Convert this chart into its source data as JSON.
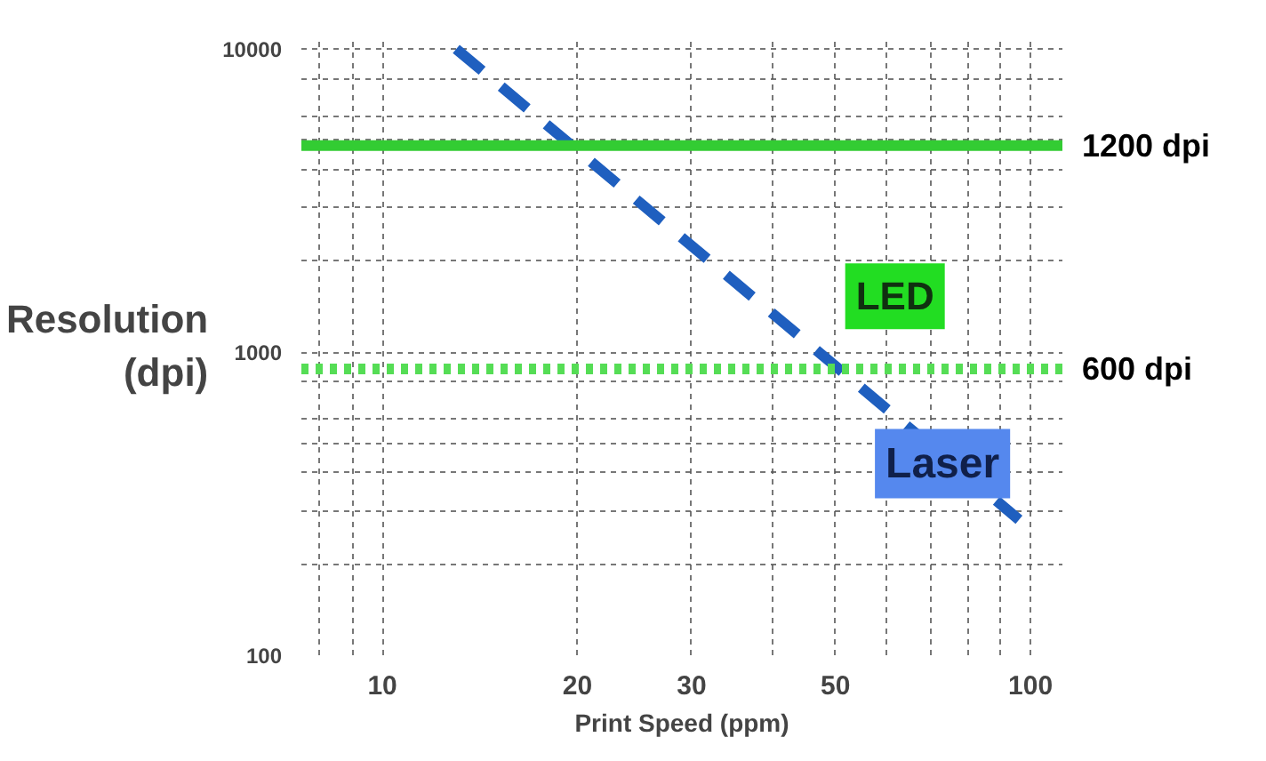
{
  "chart_data": {
    "type": "line",
    "xlabel": "Print Speed (ppm)",
    "ylabel": "Resolution (dpi)",
    "log": "xy",
    "grid": true,
    "line_style": "dashed",
    "marker": "none",
    "xlim": [
      7.5,
      112
    ],
    "ylim": [
      100,
      11000
    ],
    "xticks": [
      {
        "value": 8,
        "label": null
      },
      {
        "value": 9,
        "label": null
      },
      10,
      20,
      30,
      {
        "value": 40,
        "label": null
      },
      50,
      {
        "value": 60,
        "label": null
      },
      {
        "value": 70,
        "label": null
      },
      {
        "value": 80,
        "label": null
      },
      {
        "value": 90,
        "label": null
      },
      100
    ],
    "yticks": [
      100,
      {
        "value": 200,
        "label": null
      },
      {
        "value": 300,
        "label": null
      },
      {
        "value": 400,
        "label": null
      },
      {
        "value": 500,
        "label": null
      },
      {
        "value": 600,
        "label": null
      },
      {
        "value": 800,
        "label": null
      },
      1000,
      {
        "value": 2000,
        "label": null
      },
      {
        "value": 3000,
        "label": null
      },
      {
        "value": 4000,
        "label": null
      },
      {
        "value": 5000,
        "label": null
      },
      {
        "value": 6000,
        "label": null
      },
      {
        "value": 8000,
        "label": null
      },
      10000
    ],
    "series": [
      {
        "name": "Laser",
        "color": "#1f5fbf",
        "x": [
          13,
          96
        ],
        "values": [
          10000,
          280
        ]
      }
    ],
    "ref_lines": [
      {
        "axis": "y",
        "value": 4800,
        "label": "1200 dpi",
        "color": "#33cc33",
        "line_style": "solid"
      },
      {
        "axis": "y",
        "value": 880,
        "label": "600 dpi",
        "color": "#55dd55",
        "line_style": "dotted"
      }
    ],
    "annotations": [
      "LED"
    ]
  }
}
